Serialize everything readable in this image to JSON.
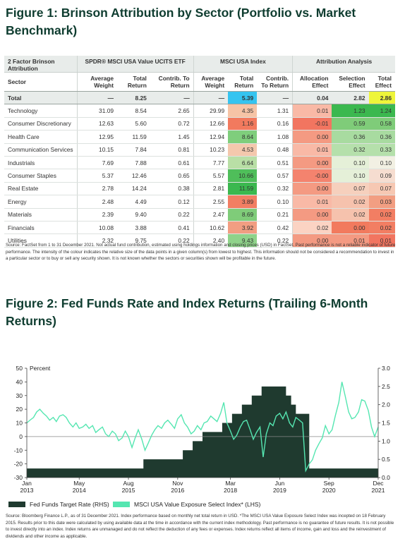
{
  "figure1": {
    "title": "Figure 1: Brinson Attribution by Sector (Portfolio vs. Market Benchmark)",
    "group_headers": [
      "2 Factor Brinson Attribution",
      "SPDR® MSCI USA Value UCITS ETF",
      "MSCI USA Index",
      "Attribution Analysis"
    ],
    "columns": [
      "Sector",
      "Average Weight",
      "Total Return",
      "Contrib. To Return",
      "Average Weight",
      "Total Return",
      "Contrib. To Return",
      "Allocation Effect",
      "Selection Effect",
      "Total Effect"
    ],
    "total": [
      "Total",
      "—",
      "8.25",
      "—",
      "—",
      "5.39",
      "—",
      "0.04",
      "2.82",
      "2.86"
    ],
    "total_colors": [
      "",
      "",
      "",
      "",
      "",
      "#35c4f0",
      "",
      "",
      "",
      "#eef53a"
    ],
    "rows": [
      [
        "Technology",
        "31.09",
        "8.54",
        "2.65",
        "29.99",
        "4.35",
        "1.31",
        "0.01",
        "1.23",
        "1.24"
      ],
      [
        "Consumer Discretionary",
        "12.63",
        "5.60",
        "0.72",
        "12.66",
        "1.16",
        "0.16",
        "-0.01",
        "0.59",
        "0.58"
      ],
      [
        "Health Care",
        "12.95",
        "11.59",
        "1.45",
        "12.94",
        "8.64",
        "1.08",
        "0.00",
        "0.36",
        "0.36"
      ],
      [
        "Communication Services",
        "10.15",
        "7.84",
        "0.81",
        "10.23",
        "4.53",
        "0.48",
        "0.01",
        "0.32",
        "0.33"
      ],
      [
        "Industrials",
        "7.69",
        "7.88",
        "0.61",
        "7.77",
        "6.64",
        "0.51",
        "0.00",
        "0.10",
        "0.10"
      ],
      [
        "Consumer Staples",
        "5.37",
        "12.46",
        "0.65",
        "5.57",
        "10.66",
        "0.57",
        "-0.00",
        "0.10",
        "0.09"
      ],
      [
        "Real Estate",
        "2.78",
        "14.24",
        "0.38",
        "2.81",
        "11.59",
        "0.32",
        "0.00",
        "0.07",
        "0.07"
      ],
      [
        "Energy",
        "2.48",
        "4.49",
        "0.12",
        "2.55",
        "3.89",
        "0.10",
        "0.01",
        "0.02",
        "0.03"
      ],
      [
        "Materials",
        "2.39",
        "9.40",
        "0.22",
        "2.47",
        "8.69",
        "0.21",
        "0.00",
        "0.02",
        "0.02"
      ],
      [
        "Financials",
        "10.08",
        "3.88",
        "0.41",
        "10.62",
        "3.92",
        "0.42",
        "0.02",
        "0.00",
        "0.02"
      ],
      [
        "Utilities",
        "2.32",
        "9.75",
        "0.22",
        "2.40",
        "9.43",
        "0.22",
        "0.00",
        "0.01",
        "0.01"
      ]
    ],
    "cell_colors": {
      "index_total_return": [
        "#f6c4a6",
        "#f27a5e",
        "#7fce7c",
        "#f4c8ad",
        "#b9dfa6",
        "#4fbe5a",
        "#3bb84f",
        "#f27e63",
        "#7fcc79",
        "#f29e82",
        "#8fd38a"
      ],
      "allocation": [
        "#f9b9a6",
        "#f27560",
        "#f49a82",
        "#f9b9a6",
        "#f49a82",
        "#f4836e",
        "#f49a82",
        "#f9b9a6",
        "#f49a82",
        "#fbd3c3",
        "#f49a82"
      ],
      "selection": [
        "#3bb84f",
        "#7fcc79",
        "#a8dba0",
        "#b5e0ab",
        "#e5f0d8",
        "#e5f0d8",
        "#f6d0bd",
        "#f6c2ad",
        "#f6c2ad",
        "#f27a5e",
        "#f49a82"
      ],
      "total_effect": [
        "#3bb84f",
        "#7fcc79",
        "#a8dba0",
        "#b5e0ab",
        "#f2f0e3",
        "#f6ddd0",
        "#f6c8b3",
        "#f29e82",
        "#f27e63",
        "#f27e63",
        "#f27560"
      ]
    },
    "source": "Source: FactSet from 1 to 31 December 2021. Not actual fund contribution, estimated using holdings information and closing prices (USD) in FactSet. Past performance is not a reliable indicator of future performance. The intensity of the colour indicates the relative size of the data points in a given column(s) from lowest to highest. This information should not be considered a recommendation to invest in a particular sector or to buy or sell any security shown. It is not known whether the sectors or securities shown will be profitable in the future."
  },
  "figure2": {
    "title": "Figure 2: Fed Funds Rate and Index Returns (Trailing 6-Month Returns)",
    "source": "Source: Bloomberg Finance L.P., as of 31 December 2021. Index performance based on monthly net total return in USD. *The MSCI USA Value Exposure Select Index was incepted on 18 February 2015. Results prior to this date were calculated by using available data at the time in accordance with the current index methodology. Past performance is no guarantee of future results. It is not possible to invest directly into an index. Index returns are unmanaged and do not reflect the deduction of any fees or expenses. Index returns reflect all items of income, gain and loss and the reinvestment of dividends and other income as applicable."
  },
  "chart_data": {
    "type": "area",
    "title": "Figure 2: Fed Funds Rate and Index Returns (Trailing 6-Month Returns)",
    "ylabel_left": "Percent",
    "ylim_left": [
      -30,
      50
    ],
    "ylim_right": [
      0,
      3.0
    ],
    "yticks_left": [
      "50",
      "40",
      "30",
      "20",
      "10",
      "0",
      "-10",
      "-20",
      "-30"
    ],
    "yticks_right": [
      "3.0",
      "2.5",
      "2.0",
      "1.5",
      "1.0",
      "0.5",
      "0.0"
    ],
    "xticks": [
      {
        "month": "Jan",
        "year": "2013",
        "t": 2013.0
      },
      {
        "month": "May",
        "year": "2014",
        "t": 2014.33
      },
      {
        "month": "Aug",
        "year": "2015",
        "t": 2015.58
      },
      {
        "month": "Nov",
        "year": "2016",
        "t": 2016.83
      },
      {
        "month": "Mar",
        "year": "2018",
        "t": 2018.17
      },
      {
        "month": "Jun",
        "year": "2019",
        "t": 2019.42
      },
      {
        "month": "Sep",
        "year": "2020",
        "t": 2020.67
      },
      {
        "month": "Dec",
        "year": "2021",
        "t": 2021.92
      }
    ],
    "x_range": [
      2013.0,
      2021.92
    ],
    "series": [
      {
        "name": "Fed Funds Target Rate (RHS)",
        "axis": "right",
        "color": "#1f3a2f",
        "step": true,
        "points": [
          [
            2013.0,
            0.25
          ],
          [
            2015.96,
            0.5
          ],
          [
            2016.96,
            0.75
          ],
          [
            2017.21,
            1.0
          ],
          [
            2017.46,
            1.25
          ],
          [
            2017.96,
            1.5
          ],
          [
            2018.21,
            1.75
          ],
          [
            2018.46,
            2.0
          ],
          [
            2018.71,
            2.25
          ],
          [
            2018.96,
            2.5
          ],
          [
            2019.58,
            2.25
          ],
          [
            2019.71,
            2.0
          ],
          [
            2019.83,
            1.75
          ],
          [
            2020.17,
            0.25
          ],
          [
            2021.92,
            0.25
          ]
        ]
      },
      {
        "name": "MSCI USA Value Exposure Select Index* (LHS)",
        "axis": "left",
        "color": "#55e6b1",
        "x": [
          2013.0,
          2013.08,
          2013.17,
          2013.25,
          2013.33,
          2013.42,
          2013.5,
          2013.58,
          2013.67,
          2013.75,
          2013.83,
          2013.92,
          2014.0,
          2014.08,
          2014.17,
          2014.25,
          2014.33,
          2014.42,
          2014.5,
          2014.58,
          2014.67,
          2014.75,
          2014.83,
          2014.92,
          2015.0,
          2015.08,
          2015.17,
          2015.25,
          2015.33,
          2015.42,
          2015.5,
          2015.58,
          2015.67,
          2015.75,
          2015.83,
          2015.92,
          2016.0,
          2016.08,
          2016.17,
          2016.25,
          2016.33,
          2016.42,
          2016.5,
          2016.58,
          2016.67,
          2016.75,
          2016.83,
          2016.92,
          2017.0,
          2017.08,
          2017.17,
          2017.25,
          2017.33,
          2017.42,
          2017.5,
          2017.58,
          2017.67,
          2017.75,
          2017.83,
          2017.92,
          2018.0,
          2018.08,
          2018.17,
          2018.25,
          2018.33,
          2018.42,
          2018.5,
          2018.58,
          2018.67,
          2018.75,
          2018.83,
          2018.92,
          2019.0,
          2019.08,
          2019.17,
          2019.25,
          2019.33,
          2019.42,
          2019.5,
          2019.58,
          2019.67,
          2019.75,
          2019.83,
          2019.92,
          2020.0,
          2020.08,
          2020.17,
          2020.25,
          2020.33,
          2020.42,
          2020.5,
          2020.58,
          2020.67,
          2020.75,
          2020.83,
          2020.92,
          2021.0,
          2021.08,
          2021.17,
          2021.25,
          2021.33,
          2021.42,
          2021.5,
          2021.58,
          2021.67,
          2021.75,
          2021.83,
          2021.92
        ],
        "values": [
          10,
          12,
          14,
          18,
          20,
          17,
          15,
          12,
          14,
          11,
          15,
          16,
          14,
          10,
          7,
          10,
          6,
          7,
          9,
          6,
          8,
          3,
          5,
          7,
          2,
          0,
          4,
          2,
          -3,
          -1,
          4,
          0,
          -8,
          -1,
          5,
          -2,
          -10,
          -5,
          1,
          5,
          8,
          6,
          10,
          12,
          9,
          6,
          13,
          16,
          10,
          7,
          2,
          4,
          8,
          5,
          10,
          11,
          15,
          13,
          11,
          17,
          25,
          10,
          4,
          -2,
          1,
          7,
          11,
          12,
          5,
          -2,
          3,
          7,
          -15,
          2,
          10,
          8,
          15,
          17,
          13,
          18,
          10,
          7,
          14,
          12,
          10,
          -25,
          -20,
          -17,
          -10,
          -5,
          -1,
          8,
          2,
          5,
          15,
          25,
          40,
          30,
          18,
          13,
          14,
          18,
          27,
          26,
          19,
          7,
          0,
          7
        ]
      }
    ],
    "legend_placement": "bottom",
    "grid": false
  }
}
